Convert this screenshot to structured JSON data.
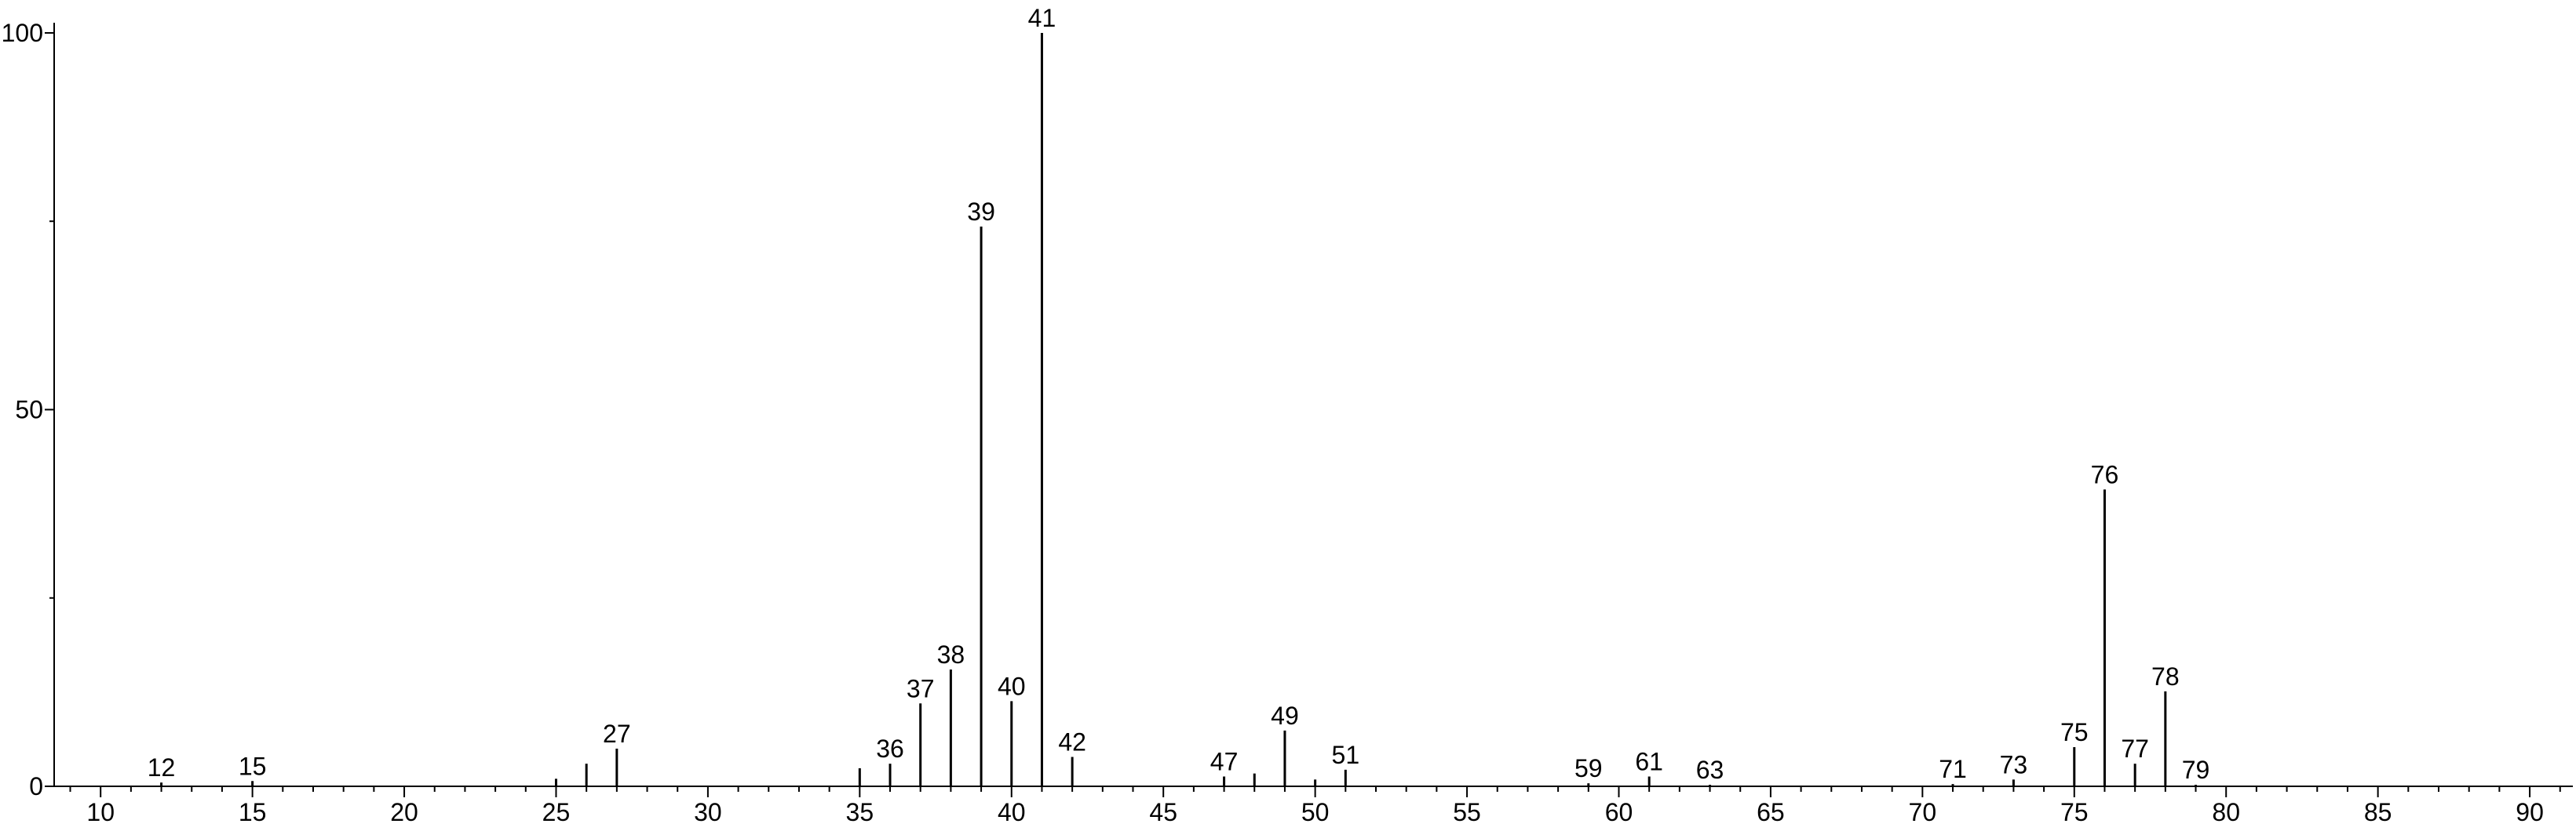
{
  "chart_data": {
    "type": "stick",
    "x": [
      12,
      15,
      25,
      26,
      27,
      35,
      36,
      37,
      38,
      39,
      40,
      41,
      42,
      47,
      48,
      49,
      50,
      51,
      59,
      61,
      63,
      71,
      73,
      75,
      76,
      77,
      78,
      79
    ],
    "values": [
      0.5,
      0.7,
      1,
      3,
      5,
      2.4,
      3,
      11,
      15.5,
      74.3,
      11.3,
      100,
      3.9,
      1.3,
      1.7,
      7.4,
      0.9,
      2.2,
      0.4,
      1.3,
      0.2,
      0.3,
      0.9,
      5.2,
      39.4,
      3,
      12.6,
      0.2
    ],
    "point_labels": [
      12,
      15,
      null,
      null,
      27,
      null,
      36,
      37,
      38,
      39,
      40,
      41,
      42,
      47,
      null,
      49,
      null,
      51,
      59,
      61,
      63,
      71,
      73,
      75,
      76,
      77,
      78,
      79
    ],
    "color": "#000000",
    "xlim": [
      8.47,
      91.42
    ],
    "xticks": [
      10,
      15,
      20,
      25,
      30,
      35,
      40,
      45,
      50,
      55,
      60,
      65,
      70,
      75,
      80,
      85,
      90
    ],
    "xminor_ticks": [
      9,
      11,
      12,
      13,
      14,
      16,
      17,
      18,
      19,
      21,
      22,
      23,
      24,
      26,
      27,
      28,
      29,
      31,
      32,
      33,
      34,
      36,
      37,
      38,
      39,
      41,
      42,
      43,
      44,
      46,
      47,
      48,
      49,
      51,
      52,
      53,
      54,
      56,
      57,
      58,
      59,
      61,
      62,
      63,
      64,
      66,
      67,
      68,
      69,
      71,
      72,
      73,
      74,
      76,
      77,
      78,
      79,
      81,
      82,
      83,
      84,
      86,
      87,
      88,
      89,
      91
    ],
    "ylim": [
      0,
      101.35
    ],
    "yticks": [
      0,
      50,
      100
    ],
    "yminor_ticks": [
      25,
      75
    ]
  }
}
